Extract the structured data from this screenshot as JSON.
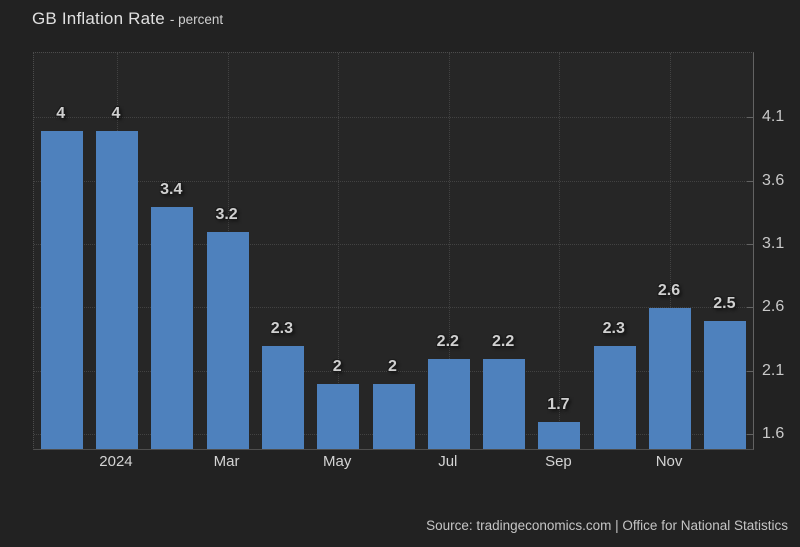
{
  "header": {
    "title": "GB Inflation Rate",
    "subtitle": "- percent"
  },
  "footer": {
    "source": "Source: tradingeconomics.com | Office for National Statistics"
  },
  "colors": {
    "background": "#222222",
    "plot_background": "#262626",
    "bar": "#4e81bd",
    "grid": "#424242",
    "axis_line": "#636363",
    "tick_text": "#c9c9c9",
    "value_text": "#d0d0d0",
    "title_text": "#e0e0e0",
    "source_text": "#c5c5c5"
  },
  "chart_data": {
    "type": "bar",
    "title": "GB Inflation Rate",
    "subtitle": "- percent",
    "ylabel": "percent",
    "values": [
      4,
      4,
      3.4,
      3.2,
      2.3,
      2,
      2,
      2.2,
      2.2,
      1.7,
      2.3,
      2.6,
      2.5
    ],
    "bar_labels": [
      "4",
      "4",
      "3.4",
      "3.2",
      "2.3",
      "2",
      "2",
      "2.2",
      "2.2",
      "1.7",
      "2.3",
      "2.6",
      "2.5"
    ],
    "x_tick_labels": [
      "2024",
      "Mar",
      "May",
      "Jul",
      "Sep",
      "Nov"
    ],
    "x_tick_bar_indices": [
      1,
      3,
      5,
      7,
      9,
      11
    ],
    "y_ticks": [
      4.1,
      3.6,
      3.1,
      2.6,
      2.1,
      1.6
    ],
    "ylim": [
      1.49,
      4.615
    ],
    "grid": "dotted",
    "legend": "none",
    "y_axis_side": "right"
  }
}
